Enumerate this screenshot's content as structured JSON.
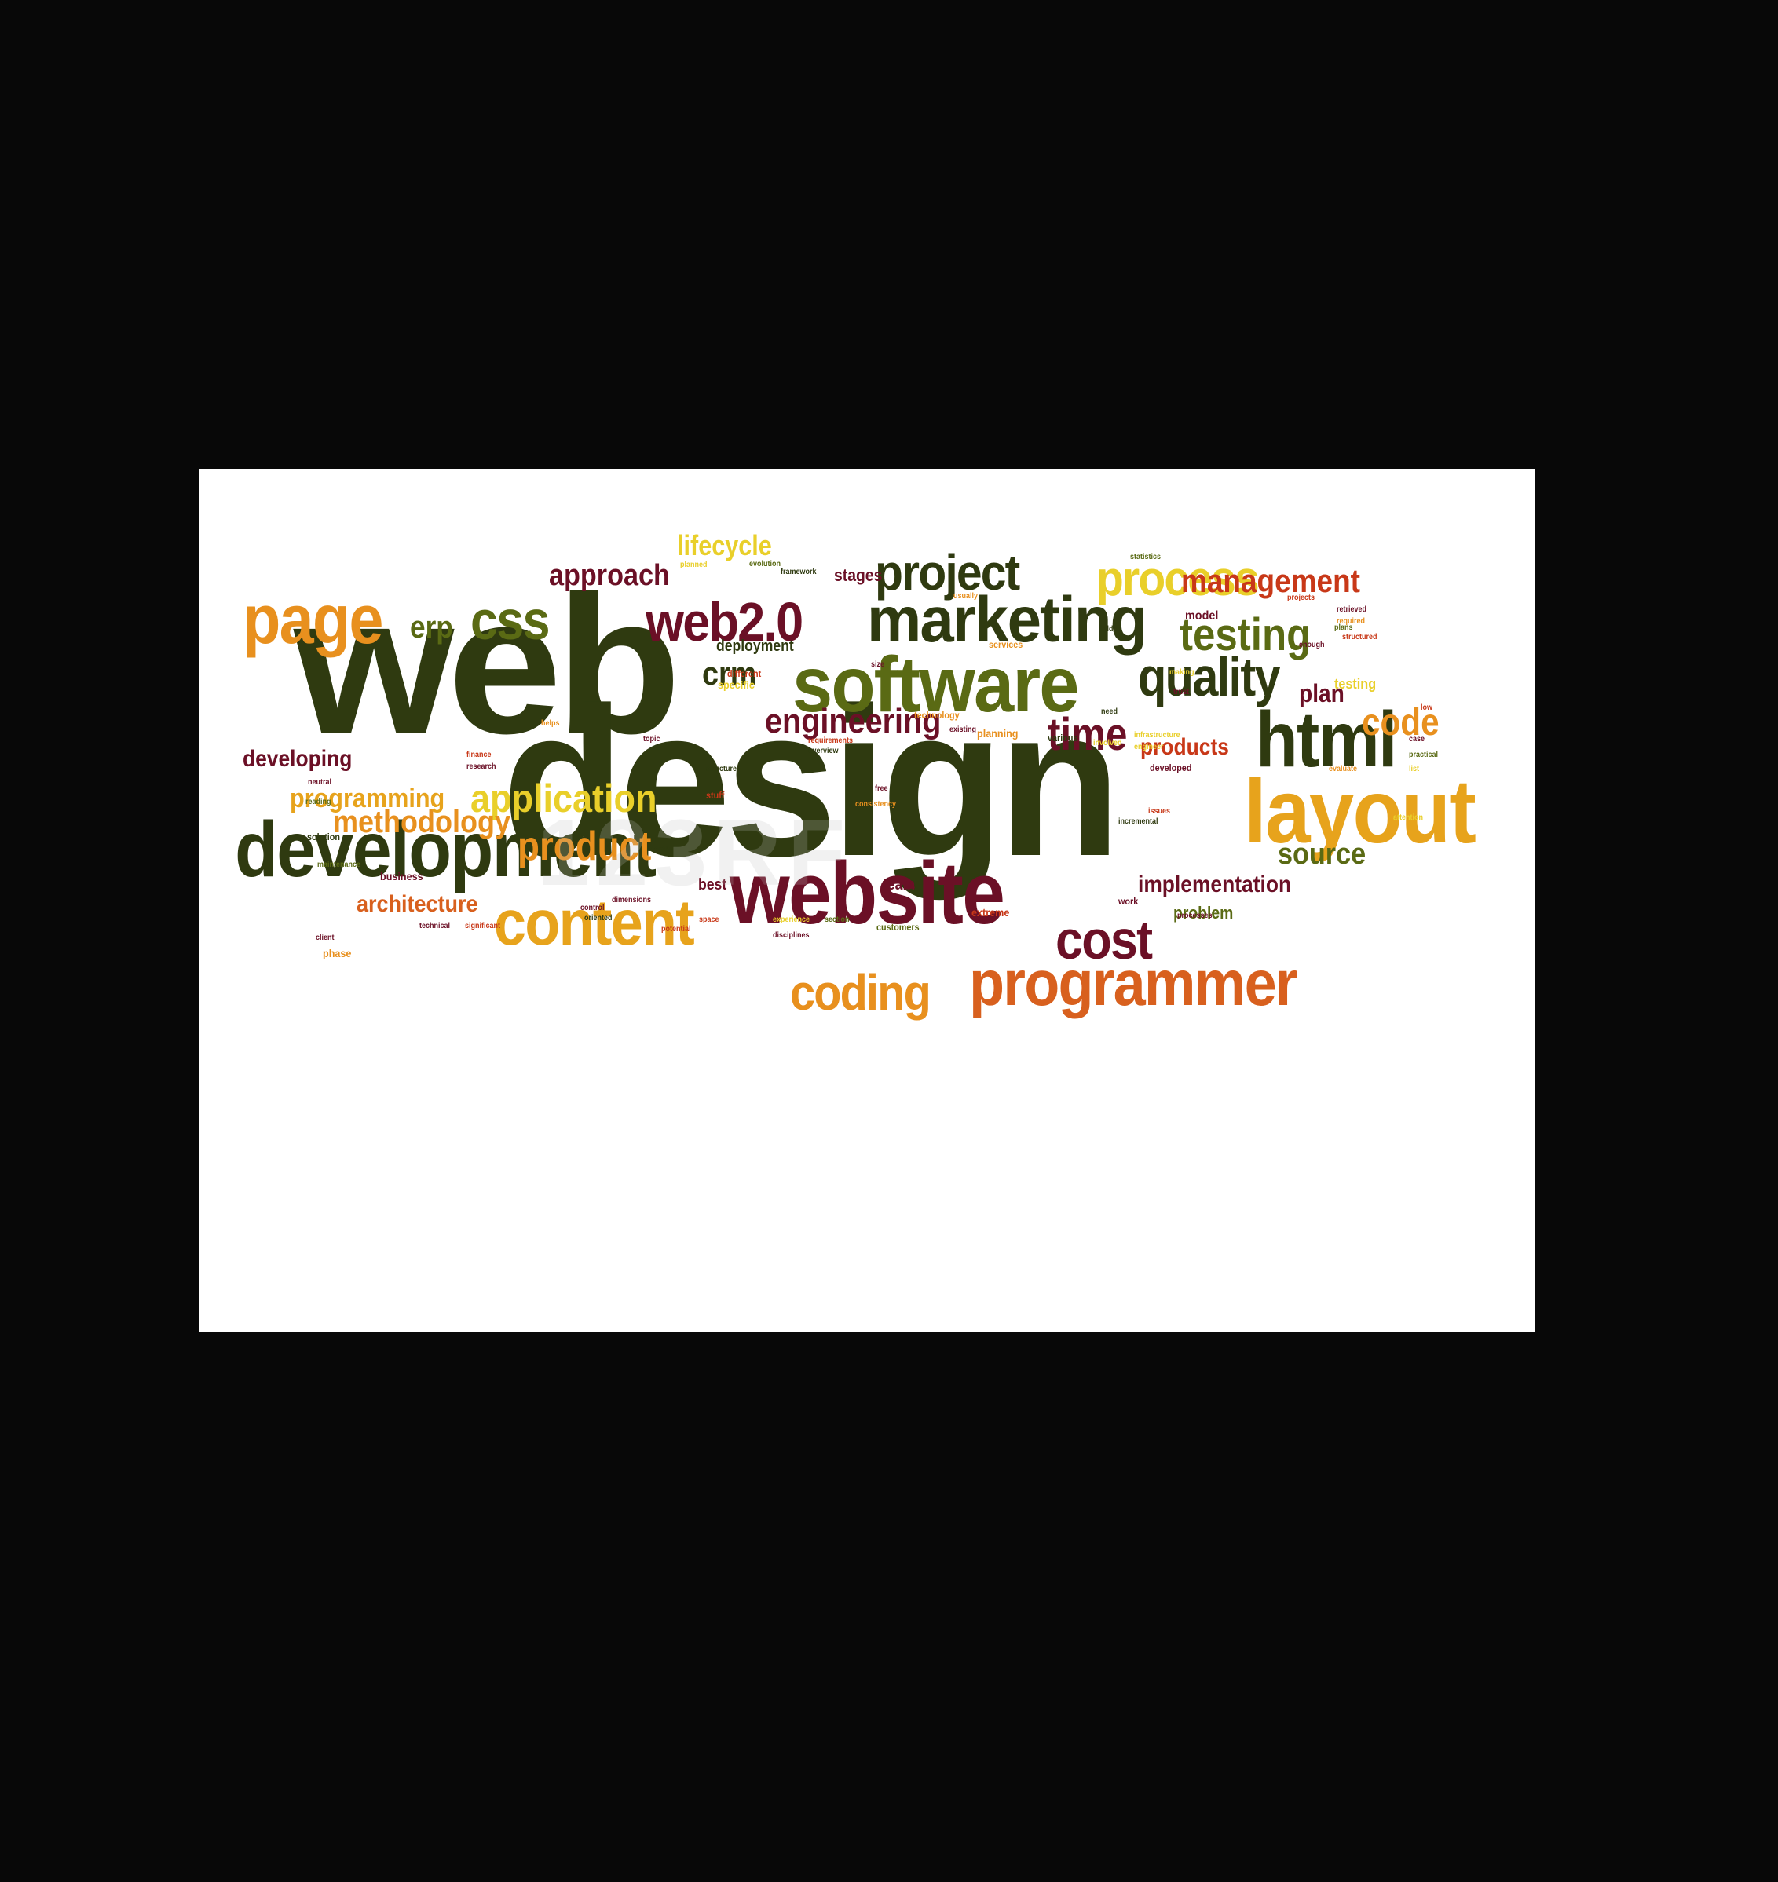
{
  "image": {
    "background": "#080808",
    "card_background": "#ffffff",
    "watermark_text": "123RF"
  },
  "palette": {
    "dark_olive": "#2f3a10",
    "olive": "#5a6a14",
    "maroon": "#6b1026",
    "orange": "#e8901e",
    "amber": "#e7a31c",
    "yellow": "#e9cf2a",
    "burnt": "#d8601e",
    "red": "#c83818"
  },
  "words": [
    {
      "text": "web",
      "color": "#2f3a10"
    },
    {
      "text": "design",
      "color": "#2f3a10"
    },
    {
      "text": "development",
      "color": "#2f3a10"
    },
    {
      "text": "website",
      "color": "#6b1026"
    },
    {
      "text": "marketing",
      "color": "#2f3a10"
    },
    {
      "text": "software",
      "color": "#5a6a14"
    },
    {
      "text": "layout",
      "color": "#e7a31c"
    },
    {
      "text": "html",
      "color": "#2f3a10"
    },
    {
      "text": "content",
      "color": "#e7a31c"
    },
    {
      "text": "programmer",
      "color": "#d8601e"
    },
    {
      "text": "page",
      "color": "#e8901e"
    },
    {
      "text": "web2.0",
      "color": "#6b1026"
    },
    {
      "text": "project",
      "color": "#2f3a10"
    },
    {
      "text": "process",
      "color": "#e9cf2a"
    },
    {
      "text": "quality",
      "color": "#2f3a10"
    },
    {
      "text": "css",
      "color": "#5a6a14"
    },
    {
      "text": "cost",
      "color": "#6b1026"
    },
    {
      "text": "coding",
      "color": "#e8901e"
    },
    {
      "text": "testing",
      "color": "#5a6a14"
    },
    {
      "text": "time",
      "color": "#6b1026"
    },
    {
      "text": "code",
      "color": "#e8901e"
    },
    {
      "text": "management",
      "color": "#c83818"
    },
    {
      "text": "engineering",
      "color": "#6b1026"
    },
    {
      "text": "product",
      "color": "#e8901e"
    },
    {
      "text": "application",
      "color": "#e9cf2a"
    },
    {
      "text": "methodology",
      "color": "#e8901e"
    },
    {
      "text": "source",
      "color": "#5a6a14"
    },
    {
      "text": "approach",
      "color": "#6b1026"
    },
    {
      "text": "lifecycle",
      "color": "#e9cf2a"
    },
    {
      "text": "programming",
      "color": "#e7a31c"
    },
    {
      "text": "crm",
      "color": "#2f3a10"
    },
    {
      "text": "erp",
      "color": "#5a6a14"
    },
    {
      "text": "implementation",
      "color": "#6b1026"
    },
    {
      "text": "architecture",
      "color": "#d8601e"
    },
    {
      "text": "developing",
      "color": "#6b1026"
    },
    {
      "text": "products",
      "color": "#c83818"
    },
    {
      "text": "plan",
      "color": "#6b1026"
    },
    {
      "text": "problem",
      "color": "#5a6a14"
    },
    {
      "text": "stages",
      "color": "#6b1026"
    },
    {
      "text": "deployment",
      "color": "#2f3a10"
    },
    {
      "text": "team",
      "color": "#6b1026"
    },
    {
      "text": "best",
      "color": "#6b1026"
    },
    {
      "text": "business",
      "color": "#6b1026"
    },
    {
      "text": "model",
      "color": "#6b1026"
    },
    {
      "text": "testing",
      "color": "#e9cf2a"
    },
    {
      "text": "planning",
      "color": "#e8901e"
    },
    {
      "text": "various",
      "color": "#2f3a10"
    },
    {
      "text": "specific",
      "color": "#e9cf2a"
    },
    {
      "text": "different",
      "color": "#c83818"
    },
    {
      "text": "solution",
      "color": "#2f3a10"
    },
    {
      "text": "extreme",
      "color": "#c83818"
    },
    {
      "text": "developed",
      "color": "#6b1026"
    },
    {
      "text": "customers",
      "color": "#5a6a14"
    },
    {
      "text": "services",
      "color": "#e8901e"
    },
    {
      "text": "framework",
      "color": "#2f3a10"
    },
    {
      "text": "evolution",
      "color": "#5a6a14"
    },
    {
      "text": "involved",
      "color": "#e9cf2a"
    },
    {
      "text": "incremental",
      "color": "#2f3a10"
    },
    {
      "text": "requirements",
      "color": "#c83818"
    },
    {
      "text": "technical",
      "color": "#6b1026"
    },
    {
      "text": "phase",
      "color": "#e8901e"
    },
    {
      "text": "significant",
      "color": "#c83818"
    },
    {
      "text": "client",
      "color": "#6b1026"
    },
    {
      "text": "maintenance",
      "color": "#5a6a14"
    },
    {
      "text": "potential",
      "color": "#c83818"
    },
    {
      "text": "experience",
      "color": "#e9cf2a"
    },
    {
      "text": "section",
      "color": "#5a6a14"
    },
    {
      "text": "disciplines",
      "color": "#6b1026"
    },
    {
      "text": "structured",
      "color": "#c83818"
    },
    {
      "text": "retrieved",
      "color": "#6b1026"
    },
    {
      "text": "required",
      "color": "#e8901e"
    },
    {
      "text": "enough",
      "color": "#6b1026"
    },
    {
      "text": "practical",
      "color": "#5a6a14"
    },
    {
      "text": "work",
      "color": "#6b1026"
    },
    {
      "text": "topic",
      "color": "#6b1026"
    },
    {
      "text": "research",
      "color": "#6b1026"
    },
    {
      "text": "finance",
      "color": "#c83818"
    },
    {
      "text": "neutral",
      "color": "#6b1026"
    },
    {
      "text": "reading",
      "color": "#5a6a14"
    },
    {
      "text": "existing",
      "color": "#6b1026"
    },
    {
      "text": "statistics",
      "color": "#5a6a14"
    },
    {
      "text": "consistency",
      "color": "#e8901e"
    },
    {
      "text": "dimensions",
      "color": "#6b1026"
    },
    {
      "text": "space",
      "color": "#c83818"
    },
    {
      "text": "helps",
      "color": "#e8901e"
    },
    {
      "text": "oriented",
      "color": "#2f3a10"
    },
    {
      "text": "control",
      "color": "#6b1026"
    },
    {
      "text": "planned",
      "color": "#e9cf2a"
    },
    {
      "text": "attention",
      "color": "#e9cf2a"
    },
    {
      "text": "usually",
      "color": "#e8901e"
    },
    {
      "text": "projects",
      "color": "#c83818"
    },
    {
      "text": "engineer",
      "color": "#e9cf2a"
    },
    {
      "text": "stuff",
      "color": "#c83818"
    },
    {
      "text": "search",
      "color": "#2f3a10"
    },
    {
      "text": "case",
      "color": "#6b1026"
    },
    {
      "text": "free",
      "color": "#6b1026"
    },
    {
      "text": "infrastructure",
      "color": "#e9cf2a"
    },
    {
      "text": "technology",
      "color": "#e8901e"
    },
    {
      "text": "processes",
      "color": "#6b1026"
    },
    {
      "text": "need",
      "color": "#2f3a10"
    },
    {
      "text": "evaluate",
      "color": "#e8901e"
    },
    {
      "text": "issues",
      "color": "#c83818"
    },
    {
      "text": "structure",
      "color": "#2f3a10"
    },
    {
      "text": "trust",
      "color": "#6b1026"
    },
    {
      "text": "list",
      "color": "#e9cf2a"
    },
    {
      "text": "fields",
      "color": "#2f3a10"
    },
    {
      "text": "low",
      "color": "#c83818"
    },
    {
      "text": "size",
      "color": "#6b1026"
    },
    {
      "text": "making",
      "color": "#e9cf2a"
    },
    {
      "text": "plans",
      "color": "#5a6a14"
    },
    {
      "text": "overview",
      "color": "#2f3a10"
    }
  ]
}
